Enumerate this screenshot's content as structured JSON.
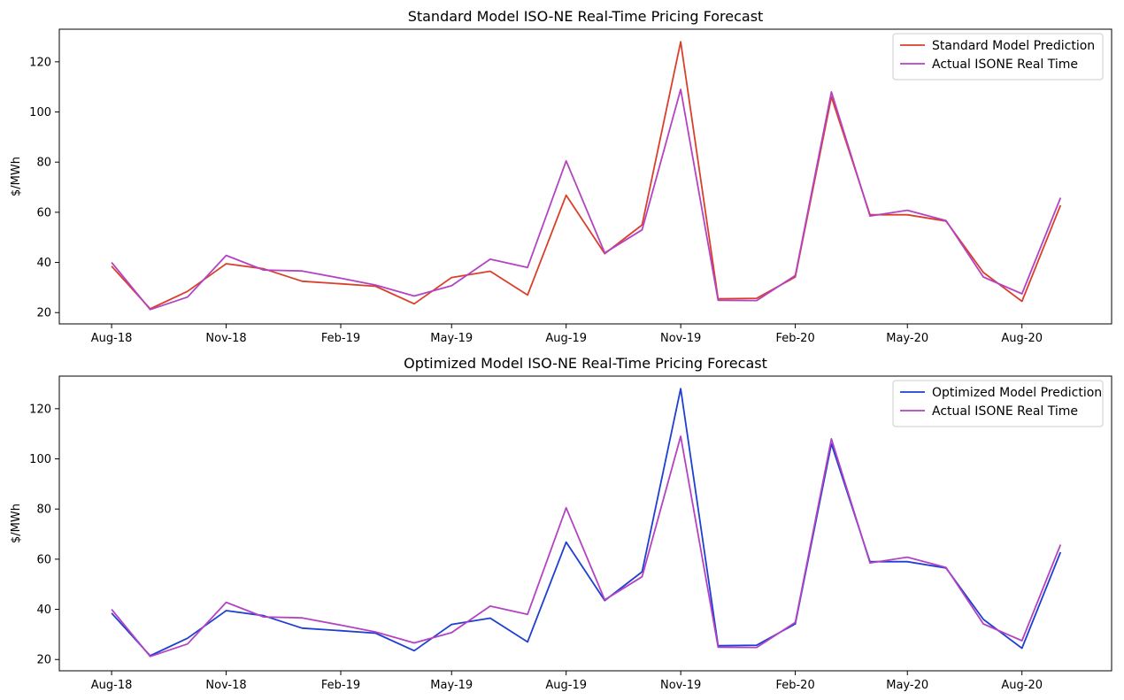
{
  "chart_data": [
    {
      "type": "line",
      "title": "Standard Model ISO-NE Real-Time Pricing Forecast",
      "xlabel": "",
      "ylabel": "$/MWh",
      "x": [
        "2018-08",
        "2018-09",
        "2018-10",
        "2018-11",
        "2018-12",
        "2019-01",
        "2019-02",
        "2019-03",
        "2019-04",
        "2019-05",
        "2019-06",
        "2019-07",
        "2019-08",
        "2019-09",
        "2019-10",
        "2019-11",
        "2019-12",
        "2020-01",
        "2020-02",
        "2020-03",
        "2020-04",
        "2020-05",
        "2020-06",
        "2020-07",
        "2020-08",
        "2020-09"
      ],
      "x_ticks": [
        "Aug-18",
        "Nov-18",
        "Feb-19",
        "May-19",
        "Aug-19",
        "Nov-19",
        "Feb-20",
        "May-20",
        "Aug-20"
      ],
      "y_ticks": [
        20,
        40,
        60,
        80,
        100,
        120
      ],
      "xlim": [
        "2018-06-20",
        "2020-10-12"
      ],
      "ylim": [
        15.5,
        133
      ],
      "grid": false,
      "legend": "top-right",
      "series": [
        {
          "name": "Standard Model Prediction",
          "color": "#d9402c",
          "values": [
            38.5,
            21.5,
            28.5,
            39.5,
            37.5,
            32.5,
            31.5,
            30.5,
            23.5,
            34,
            36.5,
            27,
            66.8,
            43.5,
            55,
            128,
            25.5,
            25.7,
            34.2,
            106,
            59,
            59,
            56.5,
            36,
            24.5,
            62.8
          ]
        },
        {
          "name": "Actual ISONE Real Time",
          "color": "#b443c4",
          "values": [
            40,
            21.2,
            26.2,
            42.8,
            37,
            36.6,
            33.7,
            31,
            26.6,
            30.7,
            41.3,
            38,
            80.5,
            43.8,
            53,
            109,
            24.9,
            24.8,
            34.8,
            108,
            58.5,
            60.8,
            56.7,
            34.2,
            27.5,
            65.8
          ]
        }
      ]
    },
    {
      "type": "line",
      "title": "Optimized Model ISO-NE Real-Time Pricing Forecast",
      "xlabel": "",
      "ylabel": "$/MWh",
      "x": [
        "2018-08",
        "2018-09",
        "2018-10",
        "2018-11",
        "2018-12",
        "2019-01",
        "2019-02",
        "2019-03",
        "2019-04",
        "2019-05",
        "2019-06",
        "2019-07",
        "2019-08",
        "2019-09",
        "2019-10",
        "2019-11",
        "2019-12",
        "2020-01",
        "2020-02",
        "2020-03",
        "2020-04",
        "2020-05",
        "2020-06",
        "2020-07",
        "2020-08",
        "2020-09"
      ],
      "x_ticks": [
        "Aug-18",
        "Nov-18",
        "Feb-19",
        "May-19",
        "Aug-19",
        "Nov-19",
        "Feb-20",
        "May-20",
        "Aug-20"
      ],
      "y_ticks": [
        20,
        40,
        60,
        80,
        100,
        120
      ],
      "xlim": [
        "2018-06-20",
        "2020-10-12"
      ],
      "ylim": [
        15.5,
        133
      ],
      "grid": false,
      "legend": "top-right",
      "series": [
        {
          "name": "Optimized Model Prediction",
          "color": "#1f3fd1",
          "values": [
            38.5,
            21.5,
            28.5,
            39.5,
            37.5,
            32.5,
            31.5,
            30.5,
            23.5,
            34,
            36.5,
            27,
            66.8,
            43.5,
            55,
            128,
            25.5,
            25.7,
            34.2,
            106,
            59,
            59,
            56.5,
            36,
            24.5,
            62.8
          ]
        },
        {
          "name": "Actual ISONE Real Time",
          "color": "#b443c4",
          "values": [
            40,
            21.2,
            26.2,
            42.8,
            37,
            36.6,
            33.7,
            31,
            26.6,
            30.7,
            41.3,
            38,
            80.5,
            43.8,
            53,
            109,
            24.9,
            24.8,
            34.8,
            108,
            58.5,
            60.8,
            56.7,
            34.2,
            27.5,
            65.8
          ]
        }
      ]
    }
  ]
}
